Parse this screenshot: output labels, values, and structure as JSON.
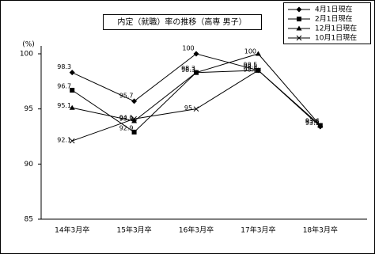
{
  "chart_data": {
    "type": "line",
    "title": "内定（就職）率の推移（高専 男子）",
    "y_label": "(%)",
    "categories": [
      "14年3月卒",
      "15年3月卒",
      "16年3月卒",
      "17年3月卒",
      "18年3月卒"
    ],
    "series": [
      {
        "name": "4月1日現在",
        "color": "#000000",
        "marker": "diamond",
        "values": [
          98.3,
          95.7,
          100,
          98.5,
          93.4
        ]
      },
      {
        "name": "2月1日現在",
        "color": "#000000",
        "marker": "square",
        "values": [
          96.7,
          92.9,
          98.3,
          98.5,
          93.5
        ]
      },
      {
        "name": "12月1日現在",
        "color": "#000000",
        "marker": "triangle",
        "values": [
          95.1,
          93.9,
          98.3,
          100,
          93.5
        ]
      },
      {
        "name": "10月1日現在",
        "color": "#000000",
        "marker": "x",
        "values": [
          92.1,
          94.1,
          95,
          98.5,
          null
        ]
      }
    ],
    "ylim": [
      85,
      100
    ],
    "yticks": [
      85,
      90,
      95,
      100
    ],
    "grid": false
  }
}
